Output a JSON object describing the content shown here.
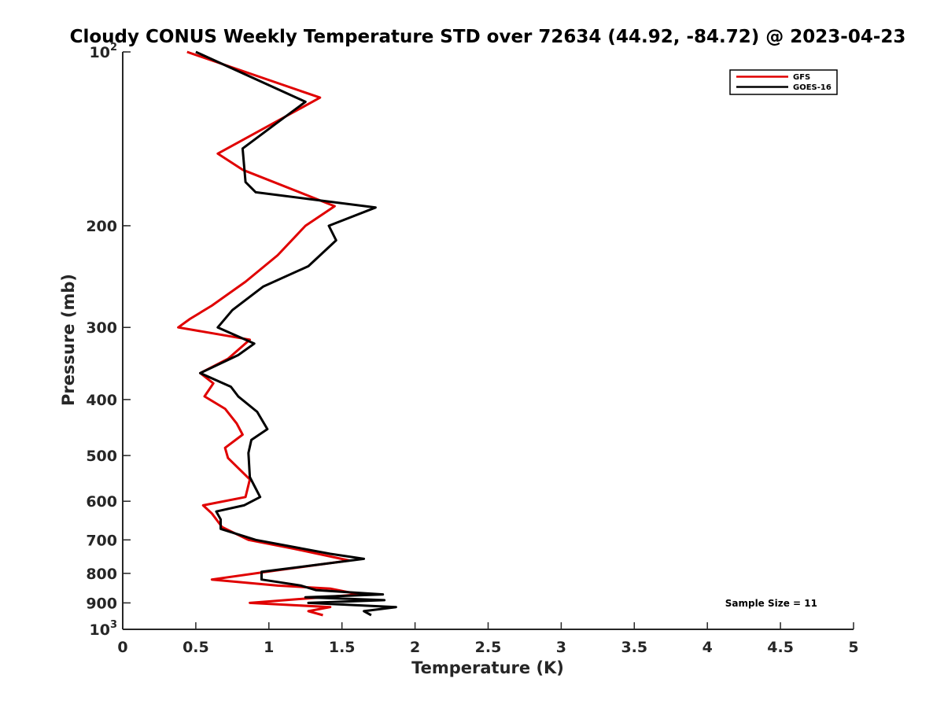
{
  "chart_data": {
    "type": "line",
    "title": "Cloudy CONUS Weekly Temperature STD over 72634 (44.92, -84.72) @ 2023-04-23",
    "xlabel": "Temperature (K)",
    "ylabel": "Pressure (mb)",
    "xlim": [
      0,
      5
    ],
    "ylim": [
      100,
      1000
    ],
    "y_scale": "log",
    "y_reversed": true,
    "x_ticks": [
      "0",
      "0.5",
      "1",
      "1.5",
      "2",
      "2.5",
      "3",
      "3.5",
      "4",
      "4.5",
      "5"
    ],
    "y_ticks": [
      {
        "value": 100,
        "base": "10",
        "exp": "2"
      },
      {
        "value": 200,
        "label": "200"
      },
      {
        "value": 300,
        "label": "300"
      },
      {
        "value": 400,
        "label": "400"
      },
      {
        "value": 500,
        "label": "500"
      },
      {
        "value": 600,
        "label": "600"
      },
      {
        "value": 700,
        "label": "700"
      },
      {
        "value": 800,
        "label": "800"
      },
      {
        "value": 900,
        "label": "900"
      },
      {
        "value": 1000,
        "base": "10",
        "exp": "3"
      }
    ],
    "legend_position": "top-right",
    "grid": false,
    "annotation": "Sample Size = 11",
    "series": [
      {
        "name": "GFS",
        "color": "#e00000",
        "points": [
          [
            0.44,
            100
          ],
          [
            1.35,
            120
          ],
          [
            0.65,
            150
          ],
          [
            0.82,
            160
          ],
          [
            1.45,
            185
          ],
          [
            1.25,
            200
          ],
          [
            1.06,
            225
          ],
          [
            0.84,
            250
          ],
          [
            0.61,
            275
          ],
          [
            0.46,
            290
          ],
          [
            0.38,
            300
          ],
          [
            0.87,
            315
          ],
          [
            0.72,
            340
          ],
          [
            0.53,
            360
          ],
          [
            0.62,
            375
          ],
          [
            0.56,
            395
          ],
          [
            0.7,
            415
          ],
          [
            0.78,
            440
          ],
          [
            0.82,
            460
          ],
          [
            0.7,
            485
          ],
          [
            0.72,
            505
          ],
          [
            0.87,
            550
          ],
          [
            0.84,
            590
          ],
          [
            0.55,
            610
          ],
          [
            0.61,
            630
          ],
          [
            0.68,
            665
          ],
          [
            0.86,
            700
          ],
          [
            1.17,
            725
          ],
          [
            1.55,
            760
          ],
          [
            1.06,
            790
          ],
          [
            0.61,
            820
          ],
          [
            1.06,
            840
          ],
          [
            1.42,
            850
          ],
          [
            1.62,
            870
          ],
          [
            0.87,
            900
          ],
          [
            1.42,
            915
          ],
          [
            1.27,
            930
          ],
          [
            1.37,
            945
          ]
        ]
      },
      {
        "name": "GOES-16",
        "color": "#000000",
        "points": [
          [
            0.5,
            100
          ],
          [
            1.25,
            122
          ],
          [
            1.05,
            133
          ],
          [
            0.82,
            147
          ],
          [
            0.84,
            168
          ],
          [
            0.91,
            175
          ],
          [
            1.73,
            186
          ],
          [
            1.41,
            200
          ],
          [
            1.46,
            212
          ],
          [
            1.27,
            235
          ],
          [
            0.96,
            255
          ],
          [
            0.75,
            280
          ],
          [
            0.65,
            300
          ],
          [
            0.9,
            320
          ],
          [
            0.79,
            335
          ],
          [
            0.53,
            360
          ],
          [
            0.74,
            380
          ],
          [
            0.79,
            395
          ],
          [
            0.92,
            420
          ],
          [
            0.99,
            450
          ],
          [
            0.88,
            470
          ],
          [
            0.86,
            495
          ],
          [
            0.87,
            545
          ],
          [
            0.94,
            590
          ],
          [
            0.83,
            610
          ],
          [
            0.64,
            625
          ],
          [
            0.67,
            645
          ],
          [
            0.67,
            670
          ],
          [
            0.91,
            700
          ],
          [
            1.42,
            740
          ],
          [
            1.65,
            755
          ],
          [
            0.95,
            795
          ],
          [
            0.95,
            820
          ],
          [
            1.22,
            840
          ],
          [
            1.32,
            855
          ],
          [
            1.78,
            870
          ],
          [
            1.25,
            880
          ],
          [
            1.79,
            890
          ],
          [
            1.27,
            900
          ],
          [
            1.87,
            915
          ],
          [
            1.65,
            930
          ],
          [
            1.7,
            945
          ]
        ]
      }
    ]
  }
}
